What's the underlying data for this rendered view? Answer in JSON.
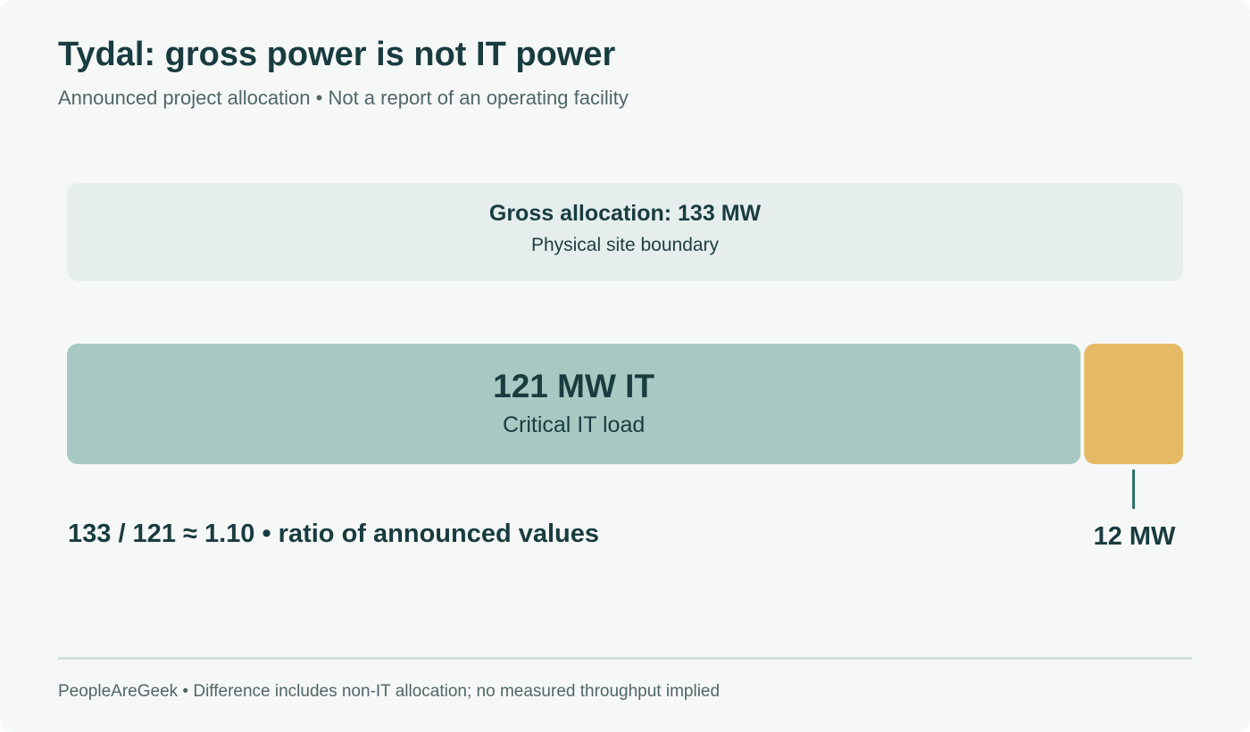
{
  "title": "Tydal: gross power is not IT power",
  "subtitle": "Announced project allocation • Not a report of an operating facility",
  "gross": {
    "label": "Gross allocation: 133 MW",
    "sublabel": "Physical site boundary"
  },
  "ratio_text": "133 / 121 ≈ 1.10 • ratio of announced values",
  "footer": "PeopleAreGeek • Difference includes non-IT allocation; no measured throughput implied",
  "colors": {
    "it": "#a8c9c3",
    "non_it": "#e6b965",
    "gross_box": "#e5eeed",
    "text": "#183c40",
    "leader": "#2a6e62"
  },
  "chart_data": {
    "type": "bar",
    "title": "Tydal: gross power is not IT power",
    "total": 133,
    "unit": "MW",
    "segments": [
      {
        "value": 121,
        "label": "121 MW IT",
        "sublabel": "Critical IT load"
      },
      {
        "value": 12,
        "label": "12 MW",
        "sublabel": ""
      }
    ]
  }
}
